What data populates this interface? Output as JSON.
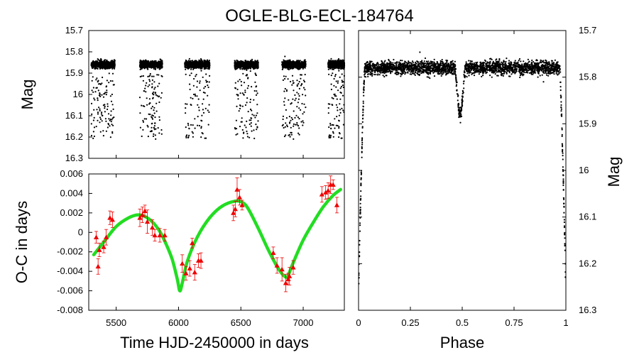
{
  "chart_data": [
    {
      "id": "lightcurve",
      "type": "scatter",
      "title": "OGLE-BLG-ECL-184764",
      "xlabel": "",
      "ylabel": "Mag",
      "xlim": [
        5280,
        7330
      ],
      "ylim": [
        16.3,
        15.7
      ],
      "yticks": [
        "15.7",
        "15.8",
        "15.9",
        "16",
        "16.1",
        "16.2",
        "16.3"
      ],
      "season_ranges": [
        [
          5300,
          5490
        ],
        [
          5690,
          5870
        ],
        [
          6050,
          6250
        ],
        [
          6450,
          6640
        ],
        [
          6830,
          7020
        ],
        [
          7200,
          7330
        ]
      ],
      "out_of_eclipse_mag": 15.86,
      "eclipse_mag_range": [
        15.9,
        16.21
      ],
      "color": "#000000"
    },
    {
      "id": "oc",
      "type": "scatter",
      "xlabel": "Time HJD-2450000 in days",
      "ylabel": "O-C in days",
      "xlim": [
        5280,
        7330
      ],
      "ylim": [
        -0.008,
        0.006
      ],
      "xticks": [
        "5500",
        "6000",
        "6500",
        "7000"
      ],
      "yticks": [
        "-0.008",
        "-0.006",
        "-0.004",
        "-0.002",
        "0",
        "0.002",
        "0.004",
        "0.006"
      ],
      "points_x": [
        5340,
        5355,
        5365,
        5400,
        5420,
        5450,
        5470,
        5690,
        5710,
        5730,
        5750,
        5790,
        5810,
        5850,
        5890,
        6030,
        6060,
        6090,
        6110,
        6130,
        6160,
        6180,
        6440,
        6455,
        6470,
        6490,
        6510,
        6760,
        6790,
        6830,
        6860,
        6880,
        6890,
        6920,
        7150,
        7180,
        7200,
        7220,
        7240,
        7270
      ],
      "points_y": [
        -0.0005,
        -0.0035,
        -0.0018,
        -0.0015,
        -0.0005,
        0.0015,
        0.0013,
        0.0015,
        0.0018,
        0.0022,
        0.0011,
        0.0005,
        -0.0003,
        -0.0003,
        -0.0003,
        -0.0032,
        -0.0042,
        -0.0037,
        -0.0011,
        -0.0041,
        -0.0029,
        -0.0029,
        0.002,
        0.0024,
        0.0044,
        0.0036,
        0.0028,
        -0.0021,
        -0.0034,
        -0.0038,
        -0.0052,
        -0.0048,
        -0.0045,
        -0.0036,
        0.0039,
        0.0041,
        0.0043,
        0.0049,
        0.0049,
        0.0028
      ],
      "errors": [
        0.0006,
        0.0008,
        0.0007,
        0.0006,
        0.0008,
        0.0007,
        0.0008,
        0.0009,
        0.0008,
        0.0006,
        0.0012,
        0.0008,
        0.0006,
        0.0007,
        0.0006,
        0.0009,
        0.0007,
        0.0008,
        0.0005,
        0.0008,
        0.0007,
        0.0008,
        0.0008,
        0.0008,
        0.0012,
        0.0008,
        0.0005,
        0.0006,
        0.0008,
        0.0012,
        0.0009,
        0.0006,
        0.0009,
        0.0007,
        0.0008,
        0.0007,
        0.0008,
        0.0009,
        0.0005,
        0.0008
      ],
      "model_x": [
        5320,
        5400,
        5500,
        5600,
        5680,
        5760,
        5840,
        5900,
        5950,
        5990,
        6010,
        6030,
        6070,
        6150,
        6250,
        6350,
        6450,
        6510,
        6560,
        6640,
        6720,
        6790,
        6840,
        6870,
        6890,
        6930,
        7000,
        7080,
        7160,
        7240,
        7300
      ],
      "model_y": [
        -0.0023,
        -0.001,
        0.0006,
        0.0015,
        0.0018,
        0.0014,
        0.0003,
        -0.0012,
        -0.0028,
        -0.0048,
        -0.006,
        -0.0052,
        -0.003,
        -0.0005,
        0.0015,
        0.0027,
        0.0032,
        0.0031,
        0.0024,
        0.0004,
        -0.0018,
        -0.0035,
        -0.0044,
        -0.0046,
        -0.0041,
        -0.0028,
        -0.0008,
        0.001,
        0.0026,
        0.0038,
        0.0044
      ],
      "points_color": "#ee0000",
      "model_color": "#22dd22"
    },
    {
      "id": "phase",
      "type": "scatter",
      "xlabel": "Phase",
      "ylabel": "Mag",
      "xlim": [
        0,
        1
      ],
      "ylim": [
        16.3,
        15.7
      ],
      "xticks": [
        "0",
        "0.25",
        "0.5",
        "0.75",
        "1"
      ],
      "yticks": [
        "15.7",
        "15.8",
        "15.9",
        "16",
        "16.1",
        "16.2",
        "16.3"
      ],
      "out_of_eclipse_mag": 15.78,
      "primary_eclipse_depth": 16.26,
      "primary_eclipse_halfwidth": 0.03,
      "secondary_eclipse_phase": 0.49,
      "secondary_eclipse_depth": 15.88,
      "secondary_eclipse_halfwidth": 0.025,
      "color": "#000000"
    }
  ]
}
